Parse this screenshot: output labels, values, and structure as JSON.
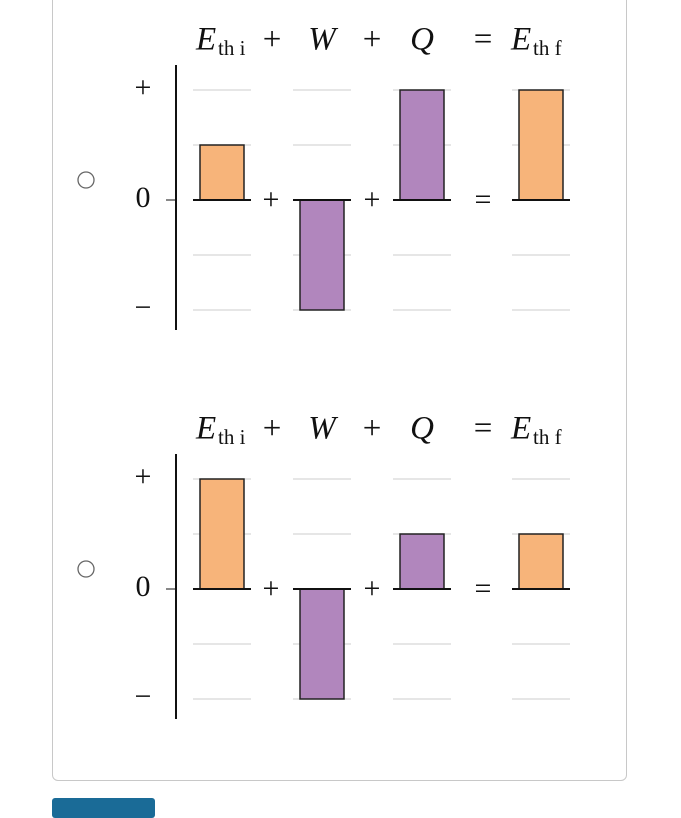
{
  "options": [
    {
      "header": {
        "e_initial": "E",
        "e_initial_sub": "th i",
        "plus_1": "+",
        "w": "W",
        "plus_2": "+",
        "q": "Q",
        "equals": "=",
        "e_final": "E",
        "e_final_sub": "th f"
      },
      "axis_ticks": [
        {
          "value": 2,
          "label": "+"
        },
        {
          "value": 0,
          "label": "0"
        },
        {
          "value": -2,
          "label": "−"
        }
      ],
      "gridlines": [
        -2,
        -1,
        1,
        2
      ],
      "operators": [
        "+",
        "+",
        "="
      ],
      "bars": [
        {
          "value": 1,
          "color": "#f7b47a"
        },
        {
          "value": -2,
          "color": "#b186bd"
        },
        {
          "value": 2,
          "color": "#b186bd"
        },
        {
          "value": 2,
          "color": "#f7b47a"
        }
      ]
    },
    {
      "header": {
        "e_initial": "E",
        "e_initial_sub": "th i",
        "plus_1": "+",
        "w": "W",
        "plus_2": "+",
        "q": "Q",
        "equals": "=",
        "e_final": "E",
        "e_final_sub": "th f"
      },
      "axis_ticks": [
        {
          "value": 2,
          "label": "+"
        },
        {
          "value": 0,
          "label": "0"
        },
        {
          "value": -2,
          "label": "−"
        }
      ],
      "gridlines": [
        -2,
        -1,
        1,
        2
      ],
      "operators": [
        "+",
        "+",
        "="
      ],
      "bars": [
        {
          "value": 2,
          "color": "#f7b47a"
        },
        {
          "value": -2,
          "color": "#b186bd"
        },
        {
          "value": 1,
          "color": "#b186bd"
        },
        {
          "value": 1,
          "color": "#f7b47a"
        }
      ]
    }
  ]
}
